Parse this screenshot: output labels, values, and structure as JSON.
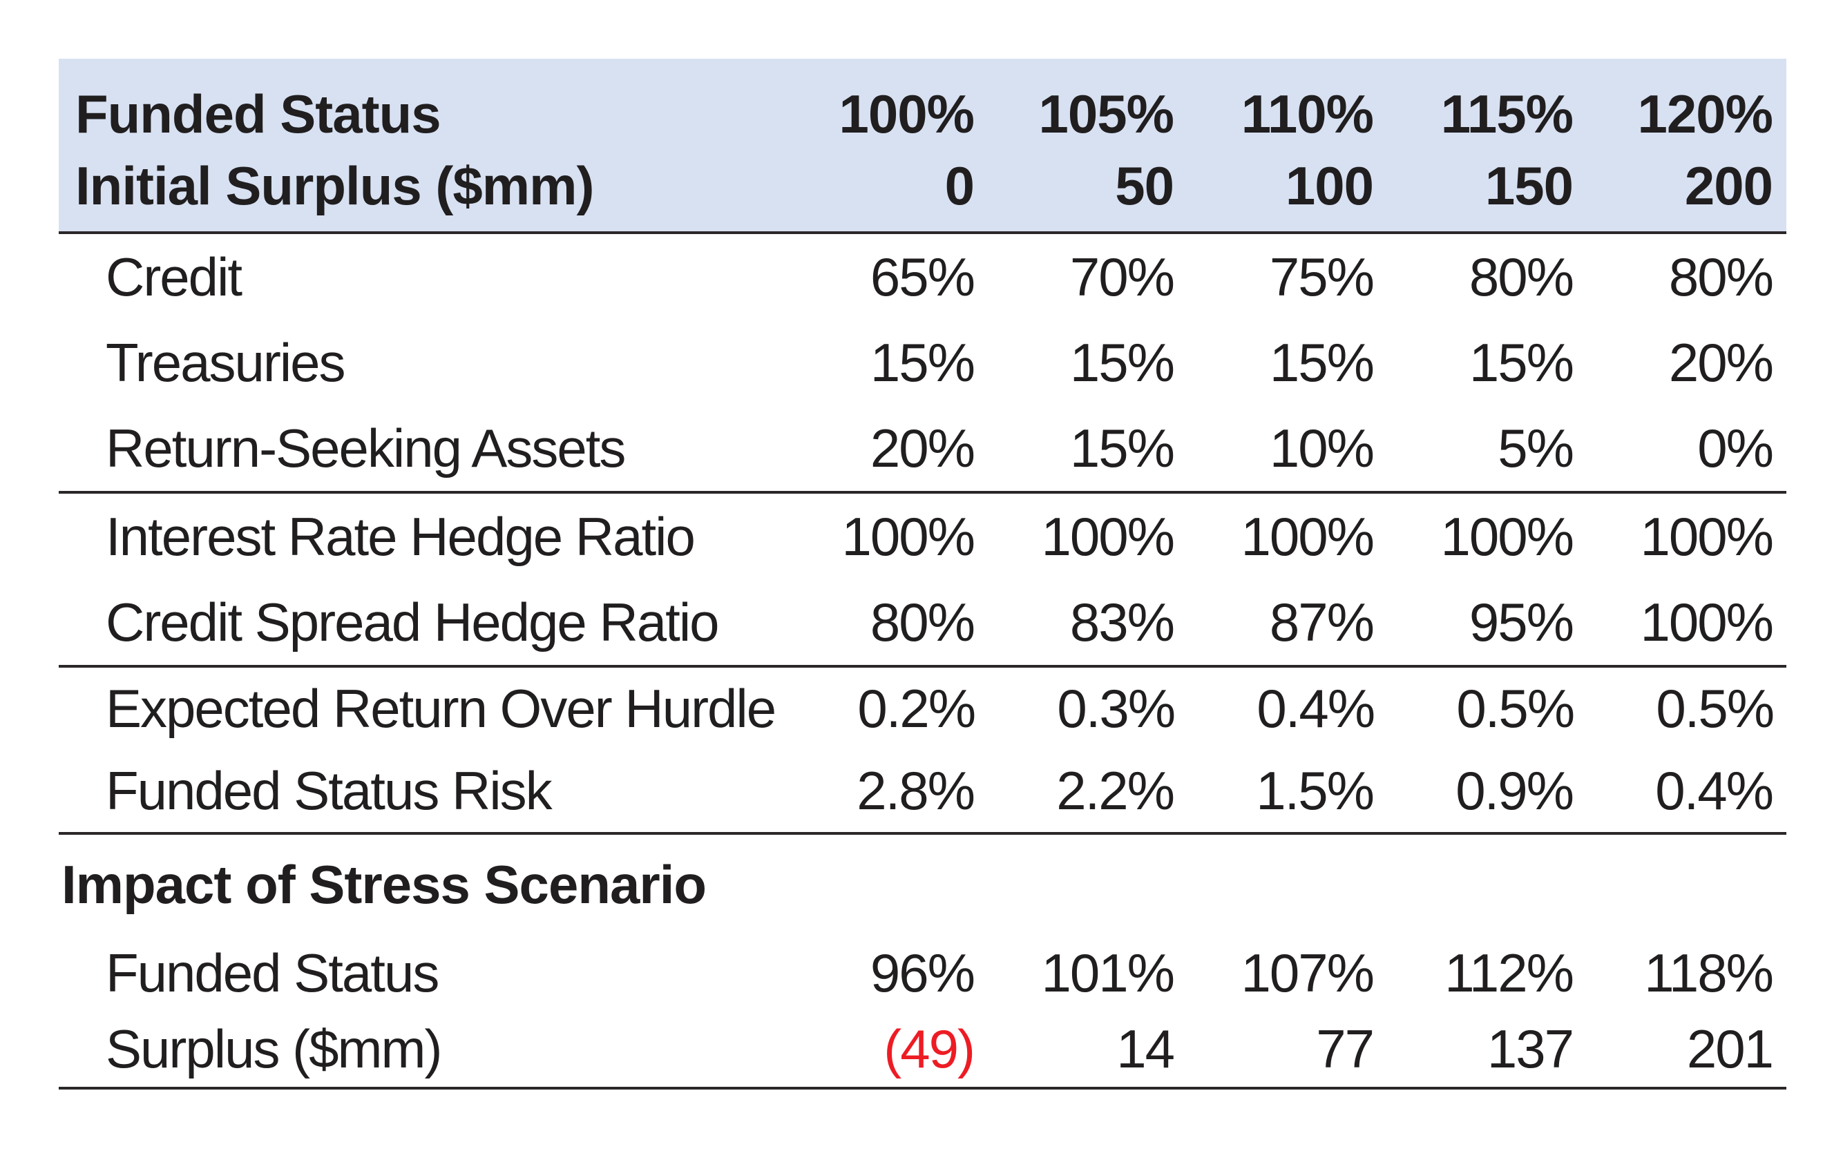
{
  "table": {
    "header_rows": [
      {
        "label": "Funded Status",
        "values": [
          "100%",
          "105%",
          "110%",
          "115%",
          "120%"
        ]
      },
      {
        "label": "Initial Surplus ($mm)",
        "values": [
          "0",
          "50",
          "100",
          "150",
          "200"
        ]
      }
    ],
    "sections": [
      {
        "rows": [
          {
            "label": "Credit",
            "values": [
              "65%",
              "70%",
              "75%",
              "80%",
              "80%"
            ]
          },
          {
            "label": "Treasuries",
            "values": [
              "15%",
              "15%",
              "15%",
              "15%",
              "20%"
            ]
          },
          {
            "label": "Return-Seeking Assets",
            "values": [
              "20%",
              "15%",
              "10%",
              "5%",
              "0%"
            ]
          }
        ]
      },
      {
        "rows": [
          {
            "label": "Interest Rate Hedge Ratio",
            "values": [
              "100%",
              "100%",
              "100%",
              "100%",
              "100%"
            ]
          },
          {
            "label": "Credit Spread Hedge Ratio",
            "values": [
              "80%",
              "83%",
              "87%",
              "95%",
              "100%"
            ]
          }
        ]
      },
      {
        "rows": [
          {
            "label": "Expected Return Over Hurdle",
            "values": [
              "0.2%",
              "0.3%",
              "0.4%",
              "0.5%",
              "0.5%"
            ]
          },
          {
            "label": "Funded Status Risk",
            "values": [
              "2.8%",
              "2.2%",
              "1.5%",
              "0.9%",
              "0.4%"
            ]
          }
        ]
      },
      {
        "header": "Impact of Stress Scenario",
        "rows": [
          {
            "label": "Funded Status",
            "values": [
              "96%",
              "101%",
              "107%",
              "112%",
              "118%"
            ]
          },
          {
            "label": "Surplus ($mm)",
            "values": [
              "(49)",
              "14",
              "77",
              "137",
              "201"
            ]
          }
        ]
      }
    ]
  },
  "chart_data": {
    "type": "table",
    "title": "",
    "columns": [
      "100% / 0",
      "105% / 50",
      "110% / 100",
      "115% / 150",
      "120% / 200"
    ],
    "rows": [
      {
        "label": "Credit",
        "values": [
          "65%",
          "70%",
          "75%",
          "80%",
          "80%"
        ]
      },
      {
        "label": "Treasuries",
        "values": [
          "15%",
          "15%",
          "15%",
          "15%",
          "20%"
        ]
      },
      {
        "label": "Return-Seeking Assets",
        "values": [
          "20%",
          "15%",
          "10%",
          "5%",
          "0%"
        ]
      },
      {
        "label": "Interest Rate Hedge Ratio",
        "values": [
          "100%",
          "100%",
          "100%",
          "100%",
          "100%"
        ]
      },
      {
        "label": "Credit Spread Hedge Ratio",
        "values": [
          "80%",
          "83%",
          "87%",
          "95%",
          "100%"
        ]
      },
      {
        "label": "Expected Return Over Hurdle",
        "values": [
          "0.2%",
          "0.3%",
          "0.4%",
          "0.5%",
          "0.5%"
        ]
      },
      {
        "label": "Funded Status Risk",
        "values": [
          "2.8%",
          "2.2%",
          "1.5%",
          "0.9%",
          "0.4%"
        ]
      },
      {
        "label": "Funded Status (stress)",
        "values": [
          "96%",
          "101%",
          "107%",
          "112%",
          "118%"
        ]
      },
      {
        "label": "Surplus ($mm) (stress)",
        "values": [
          "(49)",
          "14",
          "77",
          "137",
          "201"
        ]
      }
    ]
  },
  "colors": {
    "header_bg": "#d7e1f2",
    "text": "#211e1f",
    "rule": "#2b2728",
    "negative_red": "#ed1c24"
  }
}
